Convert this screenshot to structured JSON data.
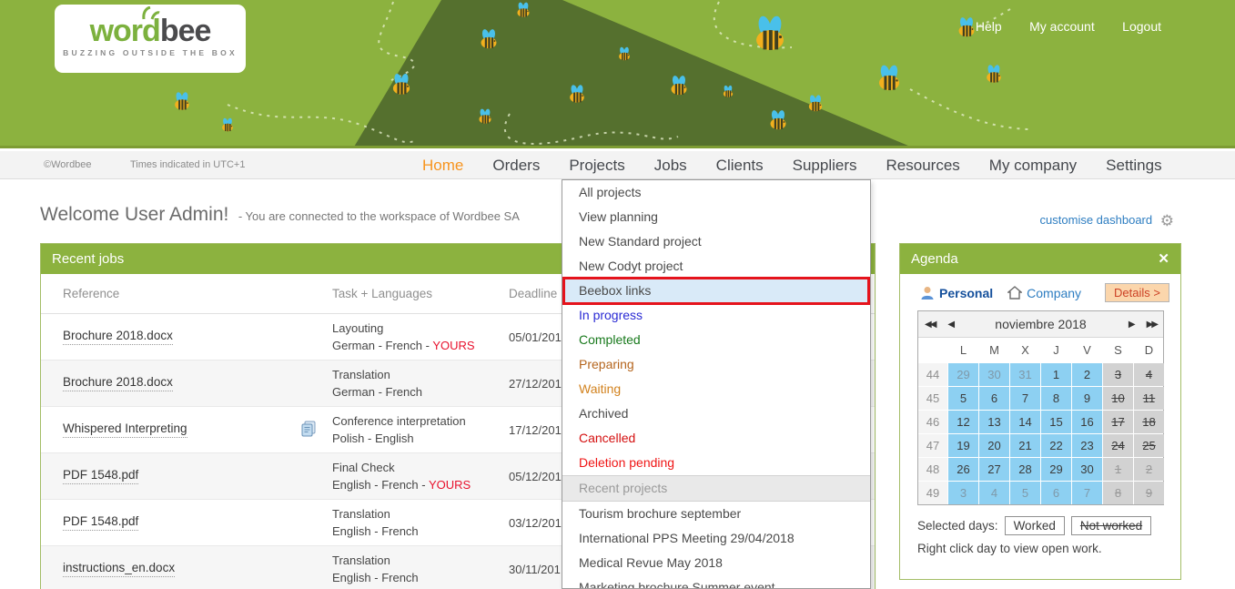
{
  "banner": {
    "logo": {
      "word": "word",
      "bee": "bee",
      "tagline": "BUZZING OUTSIDE THE BOX"
    },
    "links": [
      "Help",
      "My account",
      "Logout"
    ]
  },
  "nav": {
    "copyright": "©Wordbee",
    "timezone_note": "Times indicated in UTC+1",
    "items": [
      {
        "label": "Home",
        "active": true
      },
      {
        "label": "Orders",
        "active": false
      },
      {
        "label": "Projects",
        "active": false
      },
      {
        "label": "Jobs",
        "active": false
      },
      {
        "label": "Clients",
        "active": false
      },
      {
        "label": "Suppliers",
        "active": false
      },
      {
        "label": "Resources",
        "active": false
      },
      {
        "label": "My company",
        "active": false
      },
      {
        "label": "Settings",
        "active": false
      }
    ]
  },
  "welcome": {
    "title": "Welcome User Admin!",
    "subtitle": "- You are connected to the workspace of Wordbee SA"
  },
  "dashboard_link": {
    "label": "customise dashboard"
  },
  "projects_menu": {
    "items": [
      {
        "label": "All projects",
        "type": "plain"
      },
      {
        "label": "View planning",
        "type": "plain"
      },
      {
        "label": "New Standard project",
        "type": "plain"
      },
      {
        "label": "New Codyt project",
        "type": "plain"
      },
      {
        "label": "Beebox links",
        "type": "highlighted"
      },
      {
        "label": "In progress",
        "type": "status",
        "color": "#2a2ad4"
      },
      {
        "label": "Completed",
        "type": "status",
        "color": "#18791c"
      },
      {
        "label": "Preparing",
        "type": "status",
        "color": "#b5651d"
      },
      {
        "label": "Waiting",
        "type": "status",
        "color": "#d2821e"
      },
      {
        "label": "Archived",
        "type": "plain"
      },
      {
        "label": "Cancelled",
        "type": "status",
        "color": "#d40f0f"
      },
      {
        "label": "Deletion pending",
        "type": "status",
        "color": "#ef1515"
      },
      {
        "label": "Recent projects",
        "type": "header"
      },
      {
        "label": "Tourism brochure september",
        "type": "plain"
      },
      {
        "label": "International PPS Meeting 29/04/2018",
        "type": "plain"
      },
      {
        "label": "Medical Revue May 2018",
        "type": "plain"
      },
      {
        "label": "Marketing brochure Summer event",
        "type": "plain"
      }
    ]
  },
  "recent_jobs": {
    "title": "Recent jobs",
    "columns": [
      "Reference",
      "Task + Languages",
      "Deadline"
    ],
    "yours_label": "YOURS",
    "rows": [
      {
        "reference": "Brochure 2018.docx",
        "task": "Layouting",
        "languages": "German - French",
        "yours": true,
        "icon": false,
        "deadline": "05/01/201"
      },
      {
        "reference": "Brochure 2018.docx",
        "task": "Translation",
        "languages": "German - French",
        "yours": false,
        "icon": false,
        "deadline": "27/12/201"
      },
      {
        "reference": "Whispered Interpreting",
        "task": "Conference interpretation",
        "languages": "Polish - English",
        "yours": false,
        "icon": true,
        "deadline": "17/12/201"
      },
      {
        "reference": "PDF 1548.pdf",
        "task": "Final Check",
        "languages": "English - French",
        "yours": true,
        "icon": false,
        "deadline": "05/12/201"
      },
      {
        "reference": "PDF 1548.pdf",
        "task": "Translation",
        "languages": "English - French",
        "yours": false,
        "icon": false,
        "deadline": "03/12/201"
      },
      {
        "reference": "instructions_en.docx",
        "task": "Translation",
        "languages": "English - French",
        "yours": false,
        "icon": false,
        "deadline": "30/11/201"
      }
    ]
  },
  "agenda": {
    "title": "Agenda",
    "tabs": {
      "personal": "Personal",
      "company": "Company",
      "details": "Details >"
    },
    "calendar": {
      "month_label": "noviembre 2018",
      "day_headers": [
        "L",
        "M",
        "X",
        "J",
        "V",
        "S",
        "D"
      ],
      "weeks": [
        {
          "num": 44,
          "days": [
            {
              "d": 29,
              "muted": true
            },
            {
              "d": 30,
              "muted": true
            },
            {
              "d": 31,
              "muted": true
            },
            {
              "d": 1,
              "muted": false
            },
            {
              "d": 2,
              "muted": false
            },
            {
              "d": 3,
              "muted": false
            },
            {
              "d": 4,
              "muted": false
            }
          ]
        },
        {
          "num": 45,
          "days": [
            {
              "d": 5,
              "muted": false
            },
            {
              "d": 6,
              "muted": false
            },
            {
              "d": 7,
              "muted": false
            },
            {
              "d": 8,
              "muted": false
            },
            {
              "d": 9,
              "muted": false
            },
            {
              "d": 10,
              "muted": false
            },
            {
              "d": 11,
              "muted": false
            }
          ]
        },
        {
          "num": 46,
          "days": [
            {
              "d": 12,
              "muted": false
            },
            {
              "d": 13,
              "muted": false
            },
            {
              "d": 14,
              "muted": false
            },
            {
              "d": 15,
              "muted": false
            },
            {
              "d": 16,
              "muted": false
            },
            {
              "d": 17,
              "muted": false
            },
            {
              "d": 18,
              "muted": false
            }
          ]
        },
        {
          "num": 47,
          "days": [
            {
              "d": 19,
              "muted": false
            },
            {
              "d": 20,
              "muted": false
            },
            {
              "d": 21,
              "muted": false
            },
            {
              "d": 22,
              "muted": false
            },
            {
              "d": 23,
              "muted": false
            },
            {
              "d": 24,
              "muted": false
            },
            {
              "d": 25,
              "muted": false
            }
          ]
        },
        {
          "num": 48,
          "days": [
            {
              "d": 26,
              "muted": false
            },
            {
              "d": 27,
              "muted": false
            },
            {
              "d": 28,
              "muted": false
            },
            {
              "d": 29,
              "muted": false
            },
            {
              "d": 30,
              "muted": false
            },
            {
              "d": 1,
              "muted": true
            },
            {
              "d": 2,
              "muted": true
            }
          ]
        },
        {
          "num": 49,
          "days": [
            {
              "d": 3,
              "muted": true
            },
            {
              "d": 4,
              "muted": true
            },
            {
              "d": 5,
              "muted": true
            },
            {
              "d": 6,
              "muted": true
            },
            {
              "d": 7,
              "muted": true
            },
            {
              "d": 8,
              "muted": true
            },
            {
              "d": 9,
              "muted": true
            }
          ]
        }
      ]
    },
    "selected_days_label": "Selected days:",
    "worked_label": "Worked",
    "not_worked_label": "Not worked",
    "hint": "Right click day to view open work."
  },
  "icons": {
    "gear": "⚙",
    "close": "✕",
    "prev_year": "◀◀",
    "prev_month": "◀",
    "next_month": "▶",
    "next_year": "▶▶"
  },
  "colors": {
    "brand_green": "#8cb23f",
    "dark_green": "#55702e",
    "active_orange": "#f7941e",
    "link_blue": "#2d7dc1",
    "highlight_red": "#e5131c",
    "calendar_blue": "#8dd0f2",
    "weekend_gray": "#d2d2d2"
  }
}
